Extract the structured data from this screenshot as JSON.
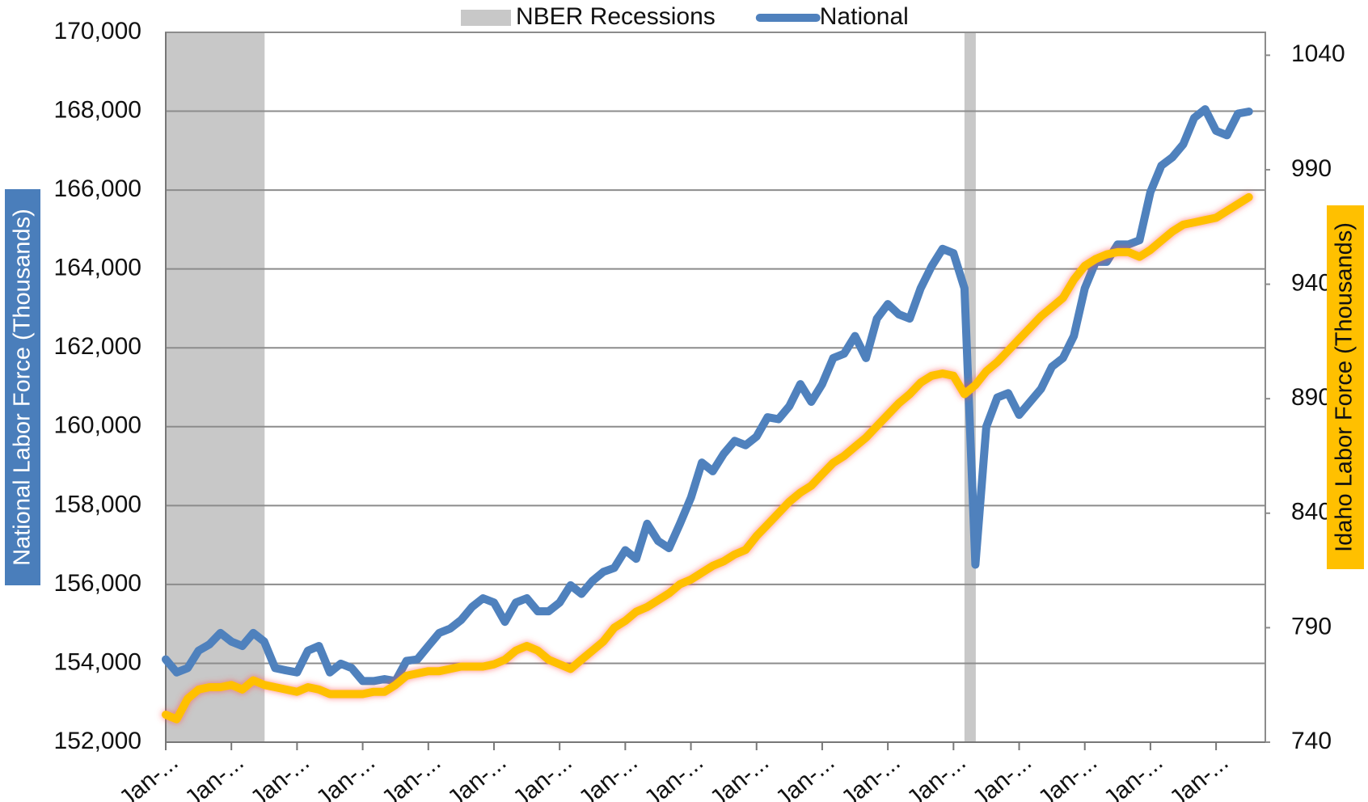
{
  "chart_data": {
    "type": "line",
    "y_label": "National Labor Force (Thousands)",
    "y2_label": "Idaho Labor Force (Thousands)",
    "categories": [
      "Jan-...",
      null,
      null,
      null,
      null,
      null,
      "Jan-...",
      null,
      null,
      null,
      null,
      null,
      "Jan-...",
      null,
      null,
      null,
      null,
      null,
      "Jan-...",
      null,
      null,
      null,
      null,
      null,
      "Jan-...",
      null,
      null,
      null,
      null,
      null,
      "Jan-...",
      null,
      null,
      null,
      null,
      null,
      "Jan-...",
      null,
      null,
      null,
      null,
      null,
      "Jan-...",
      null,
      null,
      null,
      null,
      null,
      "Jan-...",
      null,
      null,
      null,
      null,
      null,
      "Jan-...",
      null,
      null,
      null,
      null,
      null,
      "Jan-...",
      null,
      null,
      null,
      null,
      null,
      "Jan-...",
      null,
      null,
      null,
      null,
      null,
      "Jan-...",
      null,
      null,
      null,
      null,
      null,
      "Jan-...",
      null,
      null,
      null,
      null,
      null,
      "Jan-...",
      null,
      null,
      null,
      null,
      null,
      "Jan-...",
      null,
      null,
      null,
      null,
      null,
      "Jan-...",
      null,
      null,
      null
    ],
    "ylim": [
      152000,
      170000
    ],
    "yticks": [
      {
        "value": 152000,
        "label": "152,000"
      },
      {
        "value": 154000,
        "label": "154,000"
      },
      {
        "value": 156000,
        "label": "156,000"
      },
      {
        "value": 158000,
        "label": "158,000"
      },
      {
        "value": 160000,
        "label": "160,000"
      },
      {
        "value": 162000,
        "label": "162,000"
      },
      {
        "value": 164000,
        "label": "164,000"
      },
      {
        "value": 166000,
        "label": "166,000"
      },
      {
        "value": 168000,
        "label": "168,000"
      },
      {
        "value": 170000,
        "label": "170,000"
      }
    ],
    "y2lim": [
      740,
      1050
    ],
    "y2ticks": [
      740,
      790,
      840,
      890,
      940,
      990,
      1040
    ],
    "grid": true,
    "legend": "top",
    "series": [
      {
        "name": "NBER Recessions",
        "type": "bar",
        "color": "#c8c8c8",
        "values": [
          170000,
          170000,
          170000,
          170000,
          170000,
          170000,
          170000,
          170000,
          170000,
          null,
          null,
          null,
          null,
          null,
          null,
          null,
          null,
          null,
          null,
          null,
          null,
          null,
          null,
          null,
          null,
          null,
          null,
          null,
          null,
          null,
          null,
          null,
          null,
          null,
          null,
          null,
          null,
          null,
          null,
          null,
          null,
          null,
          null,
          null,
          null,
          null,
          null,
          null,
          null,
          null,
          null,
          null,
          null,
          null,
          null,
          null,
          null,
          null,
          null,
          null,
          null,
          null,
          null,
          null,
          null,
          null,
          null,
          null,
          null,
          null,
          null,
          null,
          null,
          170000,
          null,
          null,
          null,
          null,
          null,
          null,
          null,
          null,
          null,
          null,
          null,
          null,
          null,
          null,
          null,
          null,
          null,
          null,
          null,
          null,
          null,
          null,
          null,
          null,
          null,
          null
        ]
      },
      {
        "name": "National",
        "type": "line",
        "color": "#4f81bd",
        "values": [
          154100,
          153770,
          153880,
          154320,
          154480,
          154770,
          154550,
          154440,
          154770,
          154550,
          153880,
          153820,
          153770,
          154320,
          154440,
          153770,
          153990,
          153880,
          153550,
          153550,
          153600,
          153550,
          154060,
          154100,
          154440,
          154770,
          154880,
          155100,
          155430,
          155650,
          155540,
          155050,
          155540,
          155650,
          155320,
          155320,
          155540,
          155980,
          155760,
          156090,
          156320,
          156420,
          156870,
          156650,
          157540,
          157100,
          156920,
          157540,
          158200,
          159090,
          158870,
          159310,
          159640,
          159530,
          159750,
          160240,
          160190,
          160520,
          161080,
          160630,
          161080,
          161740,
          161850,
          162300,
          161740,
          162740,
          163110,
          162850,
          162740,
          163510,
          164070,
          164510,
          164400,
          163510,
          156500,
          160000,
          160740,
          160850,
          160300,
          160630,
          160960,
          161520,
          161740,
          162300,
          163510,
          164180,
          164180,
          164620,
          164620,
          164730,
          165950,
          166620,
          166830,
          167160,
          167830,
          168050,
          167500,
          167390,
          167940,
          167990
        ]
      },
      {
        "type": "line",
        "axis": "y2",
        "color": "#ffc000",
        "values": [
          752,
          750,
          759,
          763,
          764,
          764,
          765,
          763,
          767,
          765,
          764,
          763,
          762,
          764,
          763,
          761,
          761,
          761,
          761,
          762,
          762,
          765,
          769,
          770,
          771,
          771,
          772,
          773,
          773,
          773,
          774,
          776,
          780,
          782,
          780,
          776,
          774,
          772,
          776,
          780,
          784,
          790,
          793,
          797,
          799,
          802,
          805,
          809,
          811,
          814,
          817,
          819,
          822,
          824,
          830,
          835,
          840,
          845,
          849,
          852,
          857,
          862,
          865,
          869,
          873,
          878,
          883,
          888,
          892,
          897,
          900,
          901,
          900,
          892,
          896,
          902,
          906,
          911,
          916,
          921,
          926,
          930,
          934,
          942,
          948,
          951,
          953,
          954,
          954,
          952,
          955,
          959,
          963,
          966,
          967,
          968,
          969,
          972,
          975,
          978
        ]
      }
    ]
  }
}
